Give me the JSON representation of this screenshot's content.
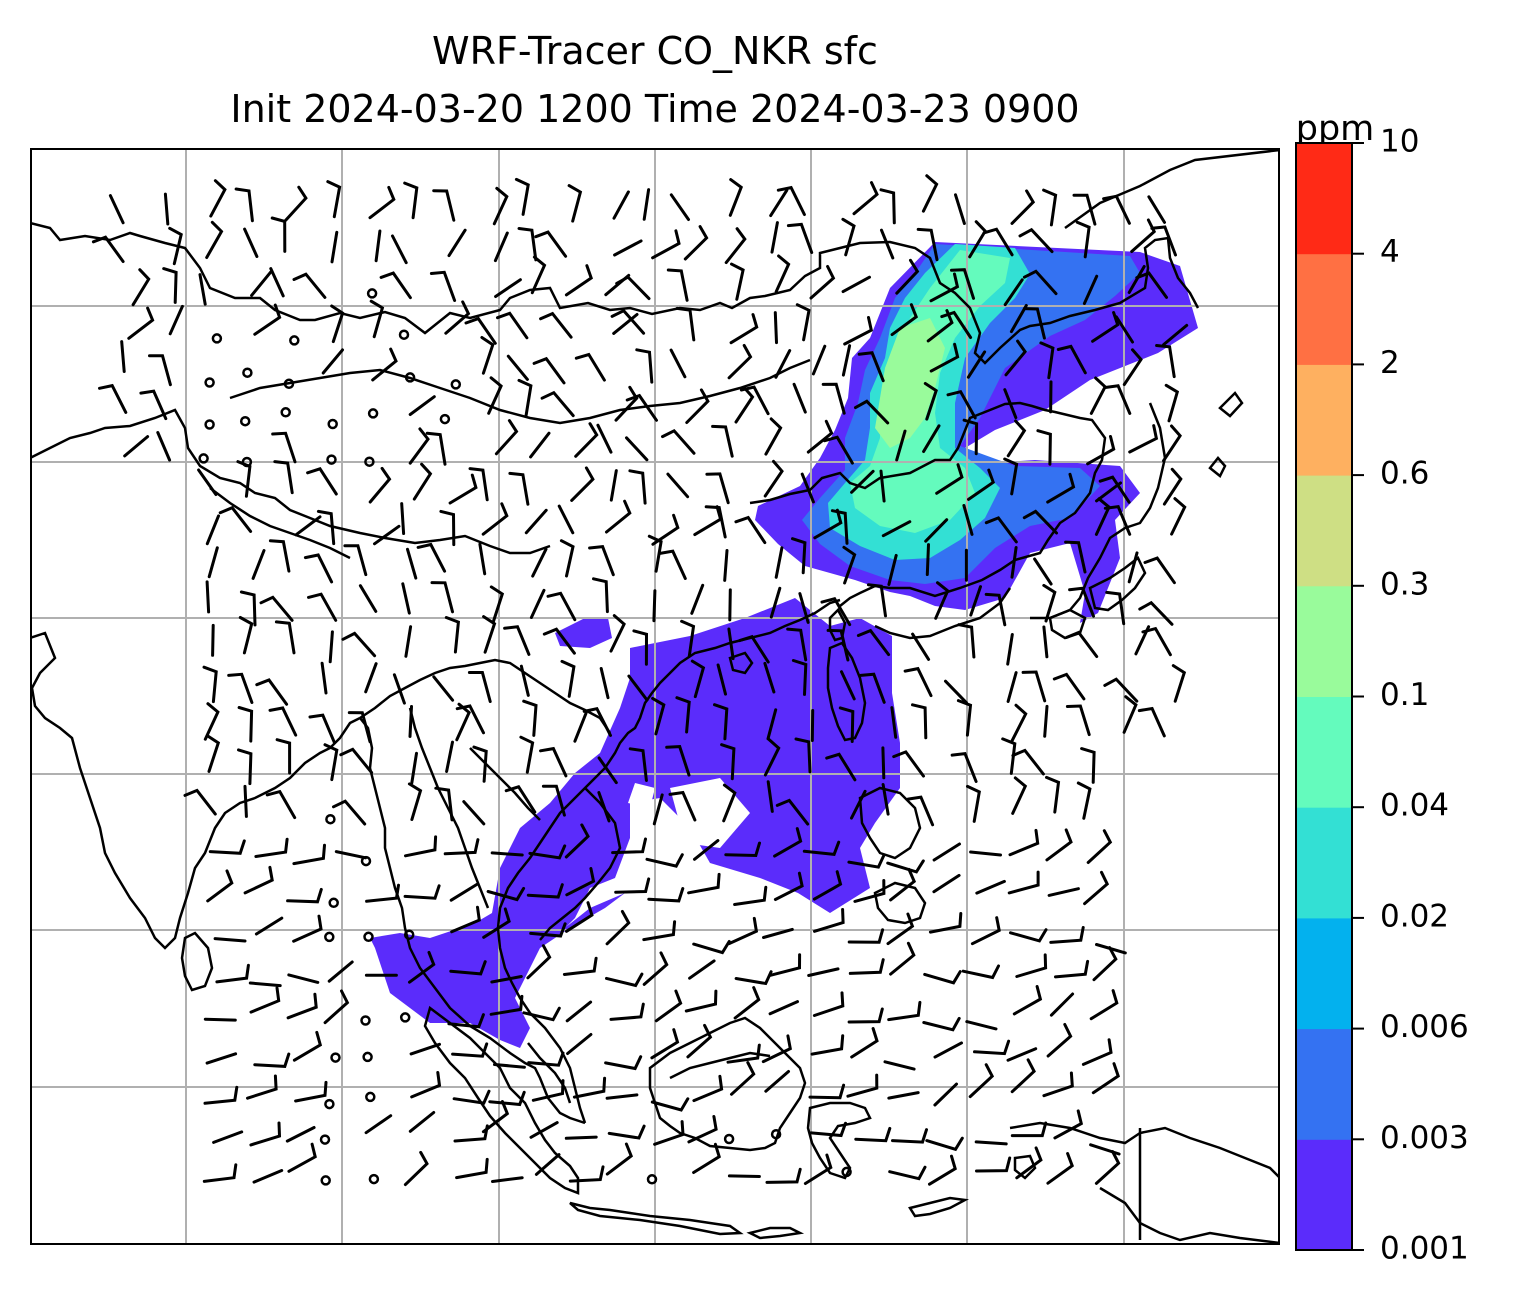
{
  "title": {
    "line1": "WRF-Tracer CO_NKR sfc",
    "line2": "Init 2024-03-20 1200 Time 2024-03-23 0900"
  },
  "colorbar": {
    "units": "ppm",
    "levels": [
      "0.001",
      "0.003",
      "0.006",
      "0.02",
      "0.04",
      "0.1",
      "0.3",
      "0.6",
      "2",
      "4",
      "10"
    ],
    "colors": [
      "#5b2cfb",
      "#3472f2",
      "#03b1ee",
      "#33e0d4",
      "#64fbbd",
      "#99fb9b",
      "#cedf84",
      "#feb060",
      "#ff7043",
      "#ff2a16"
    ]
  },
  "map": {
    "gridline_color": "#b0b0b0",
    "coastline_color": "#000000",
    "barb_color": "#000000"
  }
}
